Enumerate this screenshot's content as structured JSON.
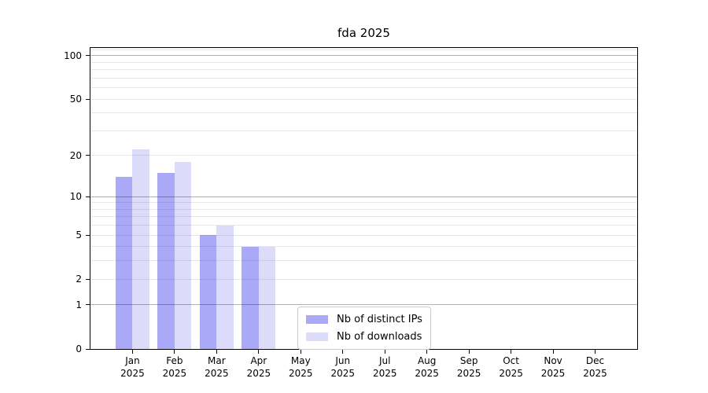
{
  "chart_data": {
    "type": "bar",
    "title": "fda 2025",
    "xlabel": "",
    "ylabel": "",
    "categories": [
      "Jan",
      "Feb",
      "Mar",
      "Apr",
      "May",
      "Jun",
      "Jul",
      "Aug",
      "Sep",
      "Oct",
      "Nov",
      "Dec"
    ],
    "category_year": "2025",
    "series": [
      {
        "name": "Nb of distinct IPs",
        "color": "#a9a9f8",
        "values": [
          14,
          15,
          5,
          4,
          0,
          0,
          0,
          0,
          0,
          0,
          0,
          0
        ]
      },
      {
        "name": "Nb of downloads",
        "color": "#dcdcfa",
        "values": [
          22,
          18,
          6,
          4,
          0,
          0,
          0,
          0,
          0,
          0,
          0,
          0
        ]
      }
    ],
    "yscale": "log1p",
    "ylim": [
      0,
      113
    ],
    "yticks": [
      0,
      1,
      2,
      5,
      10,
      20,
      50,
      100
    ],
    "major_grid_values": [
      1,
      10,
      100
    ],
    "minor_grid_values": [
      2,
      3,
      4,
      5,
      6,
      7,
      8,
      9,
      20,
      30,
      40,
      50,
      60,
      70,
      80,
      90,
      110
    ],
    "grid": true,
    "legend_position": "lower-center-inside"
  }
}
